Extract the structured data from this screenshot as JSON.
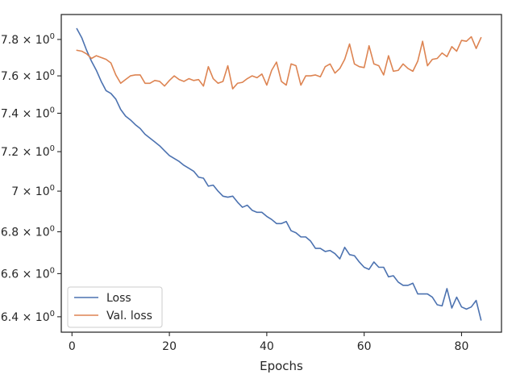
{
  "chart_data": {
    "type": "line",
    "title": "",
    "xlabel": "Epochs",
    "ylabel": "",
    "yscale": "log",
    "grid": false,
    "legend_position": "lower-left",
    "xlim": [
      -2.2,
      88.2
    ],
    "ylim": [
      6.33,
      7.94
    ],
    "x_ticks": [
      {
        "value": 0,
        "label": "0"
      },
      {
        "value": 20,
        "label": "20"
      },
      {
        "value": 40,
        "label": "40"
      },
      {
        "value": 60,
        "label": "60"
      },
      {
        "value": 80,
        "label": "80"
      }
    ],
    "y_ticks": [
      {
        "value": 6.4,
        "mantissa": "6.4",
        "base": "10",
        "exp": "0"
      },
      {
        "value": 6.6,
        "mantissa": "6.6",
        "base": "10",
        "exp": "0"
      },
      {
        "value": 6.8,
        "mantissa": "6.8",
        "base": "10",
        "exp": "0"
      },
      {
        "value": 7.0,
        "mantissa": "7",
        "base": "10",
        "exp": "0"
      },
      {
        "value": 7.2,
        "mantissa": "7.2",
        "base": "10",
        "exp": "0"
      },
      {
        "value": 7.4,
        "mantissa": "7.4",
        "base": "10",
        "exp": "0"
      },
      {
        "value": 7.6,
        "mantissa": "7.6",
        "base": "10",
        "exp": "0"
      },
      {
        "value": 7.8,
        "mantissa": "7.8",
        "base": "10",
        "exp": "0"
      }
    ],
    "series": [
      {
        "name": "Loss",
        "color": "#4c72b0",
        "x": [
          1,
          2,
          3,
          4,
          5,
          6,
          7,
          8,
          9,
          10,
          11,
          12,
          13,
          14,
          15,
          16,
          17,
          18,
          19,
          20,
          21,
          22,
          23,
          24,
          25,
          26,
          27,
          28,
          29,
          30,
          31,
          32,
          33,
          34,
          35,
          36,
          37,
          38,
          39,
          40,
          41,
          42,
          43,
          44,
          45,
          46,
          47,
          48,
          49,
          50,
          51,
          52,
          53,
          54,
          55,
          56,
          57,
          58,
          59,
          60,
          61,
          62,
          63,
          64,
          65,
          66,
          67,
          68,
          69,
          70,
          71,
          72,
          73,
          74,
          75,
          76,
          77,
          78,
          79,
          80,
          81,
          82,
          83,
          84
        ],
        "values": [
          7.86,
          7.81,
          7.74,
          7.68,
          7.63,
          7.57,
          7.52,
          7.505,
          7.475,
          7.42,
          7.385,
          7.365,
          7.34,
          7.32,
          7.29,
          7.27,
          7.25,
          7.23,
          7.205,
          7.18,
          7.165,
          7.15,
          7.13,
          7.115,
          7.1,
          7.07,
          7.065,
          7.025,
          7.03,
          7.0,
          6.975,
          6.97,
          6.975,
          6.945,
          6.92,
          6.93,
          6.905,
          6.895,
          6.895,
          6.875,
          6.86,
          6.84,
          6.84,
          6.85,
          6.805,
          6.795,
          6.775,
          6.775,
          6.755,
          6.72,
          6.72,
          6.705,
          6.71,
          6.695,
          6.67,
          6.725,
          6.69,
          6.685,
          6.655,
          6.63,
          6.62,
          6.655,
          6.63,
          6.63,
          6.585,
          6.59,
          6.56,
          6.545,
          6.545,
          6.555,
          6.505,
          6.505,
          6.505,
          6.49,
          6.455,
          6.45,
          6.53,
          6.44,
          6.49,
          6.445,
          6.435,
          6.445,
          6.475,
          6.385
        ]
      },
      {
        "name": "Val. loss",
        "color": "#dd8452",
        "x": [
          1,
          2,
          3,
          4,
          5,
          6,
          7,
          8,
          9,
          10,
          11,
          12,
          13,
          14,
          15,
          16,
          17,
          18,
          19,
          20,
          21,
          22,
          23,
          24,
          25,
          26,
          27,
          28,
          29,
          30,
          31,
          32,
          33,
          34,
          35,
          36,
          37,
          38,
          39,
          40,
          41,
          42,
          43,
          44,
          45,
          46,
          47,
          48,
          49,
          50,
          51,
          52,
          53,
          54,
          55,
          56,
          57,
          58,
          59,
          60,
          61,
          62,
          63,
          64,
          65,
          66,
          67,
          68,
          69,
          70,
          71,
          72,
          73,
          74,
          75,
          76,
          77,
          78,
          79,
          80,
          81,
          82,
          83,
          84
        ],
        "values": [
          7.74,
          7.735,
          7.72,
          7.695,
          7.71,
          7.7,
          7.69,
          7.67,
          7.605,
          7.56,
          7.58,
          7.6,
          7.605,
          7.605,
          7.56,
          7.56,
          7.575,
          7.57,
          7.545,
          7.575,
          7.6,
          7.58,
          7.57,
          7.585,
          7.575,
          7.58,
          7.545,
          7.65,
          7.585,
          7.56,
          7.57,
          7.655,
          7.53,
          7.56,
          7.565,
          7.585,
          7.6,
          7.59,
          7.61,
          7.55,
          7.63,
          7.675,
          7.57,
          7.55,
          7.665,
          7.655,
          7.55,
          7.6,
          7.6,
          7.605,
          7.595,
          7.65,
          7.665,
          7.615,
          7.64,
          7.69,
          7.775,
          7.665,
          7.65,
          7.645,
          7.765,
          7.665,
          7.655,
          7.605,
          7.71,
          7.625,
          7.63,
          7.665,
          7.64,
          7.625,
          7.68,
          7.79,
          7.655,
          7.69,
          7.695,
          7.725,
          7.705,
          7.76,
          7.735,
          7.795,
          7.79,
          7.815,
          7.75,
          7.81
        ]
      }
    ]
  }
}
